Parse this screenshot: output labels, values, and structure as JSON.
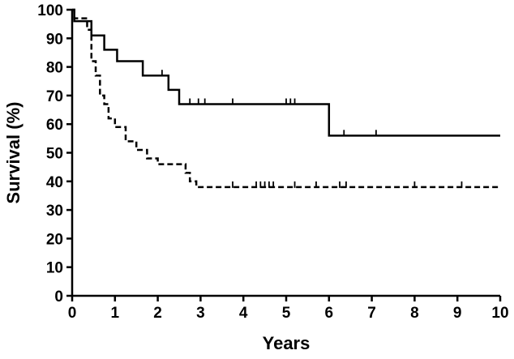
{
  "chart_data": {
    "type": "line",
    "subtype": "kaplan-meier-step",
    "title": "",
    "xlabel": "Years",
    "ylabel": "Survival (%)",
    "xlim": [
      0,
      10
    ],
    "ylim": [
      0,
      100
    ],
    "xticks": [
      "0",
      "1",
      "2",
      "3",
      "4",
      "5",
      "6",
      "7",
      "8",
      "9",
      "10"
    ],
    "yticks": [
      "0",
      "10",
      "20",
      "30",
      "40",
      "50",
      "60",
      "70",
      "80",
      "90",
      "100"
    ],
    "grid": false,
    "legend": "none",
    "series": [
      {
        "style": "solid",
        "color": "#000000",
        "steps": [
          {
            "x": 0,
            "y": 100
          },
          {
            "x": 0.05,
            "y": 96
          },
          {
            "x": 0.45,
            "y": 91
          },
          {
            "x": 0.75,
            "y": 86
          },
          {
            "x": 1.05,
            "y": 82
          },
          {
            "x": 1.65,
            "y": 77
          },
          {
            "x": 2.25,
            "y": 72
          },
          {
            "x": 2.5,
            "y": 67
          },
          {
            "x": 6.0,
            "y": 56
          },
          {
            "x": 10.0,
            "y": 56
          }
        ],
        "censored": [
          2.1,
          2.75,
          2.95,
          3.1,
          3.75,
          5.0,
          5.1,
          5.2,
          6.35,
          7.1
        ]
      },
      {
        "style": "dashed",
        "color": "#000000",
        "steps": [
          {
            "x": 0,
            "y": 100
          },
          {
            "x": 0.05,
            "y": 97
          },
          {
            "x": 0.35,
            "y": 93
          },
          {
            "x": 0.45,
            "y": 82
          },
          {
            "x": 0.55,
            "y": 77
          },
          {
            "x": 0.65,
            "y": 70
          },
          {
            "x": 0.75,
            "y": 67
          },
          {
            "x": 0.85,
            "y": 62
          },
          {
            "x": 1.0,
            "y": 59
          },
          {
            "x": 1.25,
            "y": 54
          },
          {
            "x": 1.5,
            "y": 51
          },
          {
            "x": 1.75,
            "y": 48
          },
          {
            "x": 2.0,
            "y": 46
          },
          {
            "x": 2.65,
            "y": 43
          },
          {
            "x": 2.75,
            "y": 40
          },
          {
            "x": 2.9,
            "y": 38
          },
          {
            "x": 10.0,
            "y": 38
          }
        ],
        "censored": [
          3.75,
          4.3,
          4.4,
          4.5,
          4.6,
          4.7,
          5.2,
          5.7,
          6.25,
          6.4,
          8.0,
          9.1
        ]
      }
    ]
  }
}
